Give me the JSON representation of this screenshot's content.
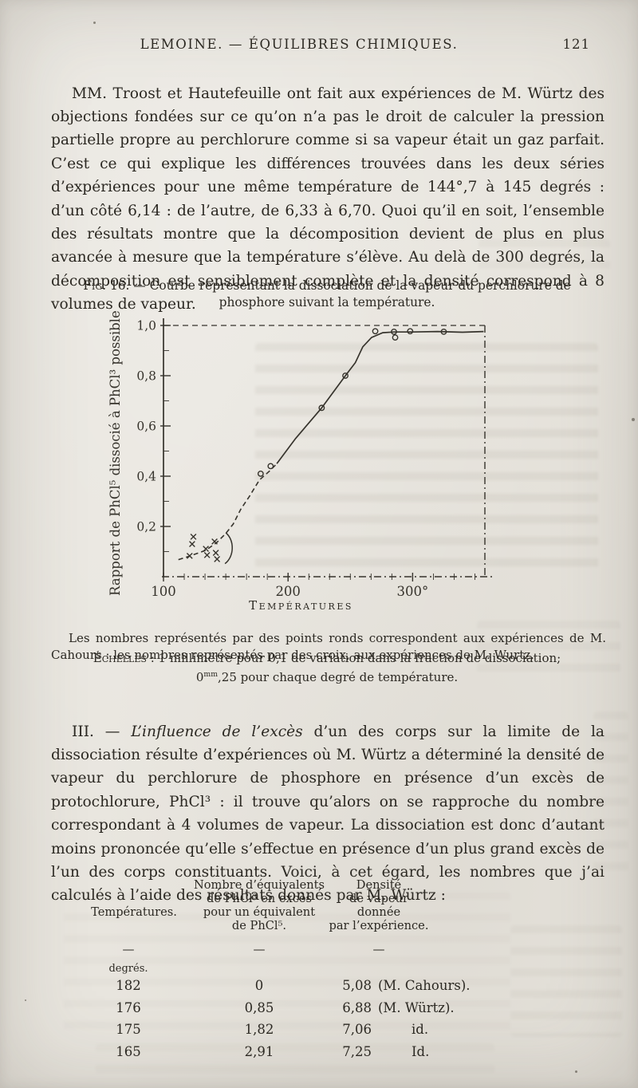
{
  "header": {
    "title": "LEMOINE. — ÉQUILIBRES CHIMIQUES.",
    "page_number": "121"
  },
  "paragraph1": "MM. Troost et Hautefeuille ont fait aux expériences de M. Würtz des objections fondées sur ce qu’on n’a pas le droit de calculer la pression partielle propre au perchlorure comme si sa vapeur était un gaz parfait. C’est ce qui explique les différences trouvées dans les deux séries d’expériences pour une même température de 144°,7 à 145 degrés : d’un côté 6,14 : de l’autre, de 6,33 à 6,70. Quoi qu’il en soit, l’ensemble des résultats montre que la décomposition devient de plus en plus avancée à mesure que la température s’élève. Au delà de 300 degrés, la décomposition est sensiblement complète et la densité correspond à 8 volumes de vapeur.",
  "figure": {
    "caption_label": "Fig. 16.",
    "caption_text": " — Courbe représentant la dissociation de la vapeur du perchlorure de phosphore suivant la température.",
    "xlabel_display": "Températures",
    "legend_note": "Les nombres représentés par des points ronds correspondent aux expériences de M. Cahours : les nombres représentés par des croix, aux expériences de M. Wurtz.",
    "scales_label": "Échelles",
    "scales_line1_rest": " : 1 millimètre pour 0,1 de variation dans la fraction de dissociation;",
    "scales_line2_pre": "0",
    "scales_line2_sup": "mm",
    "scales_line2_post": ",25 pour chaque degré de température."
  },
  "chart_data": {
    "type": "line",
    "title": "Fig. 16. — Courbe représentant la dissociation de la vapeur du perchlorure de phosphore suivant la température.",
    "xlabel": "TEMPÉRATURES",
    "ylabel": "Rapport de PhCl⁵ dissocié à PhCl³ possible.",
    "xlim": [
      100,
      358
    ],
    "ylim": [
      0,
      1.0
    ],
    "xticks": [
      100,
      200,
      300
    ],
    "xtick_labels": [
      "100",
      "200",
      "300°"
    ],
    "x_minor_step": 16.667,
    "yticks": [
      0.2,
      0.4,
      0.6,
      0.8,
      1.0
    ],
    "ytick_labels": [
      "0,2",
      "0,4",
      "0,6",
      "0,8",
      "1,0"
    ],
    "y_minor_step": 0.1,
    "top_reference_line": 1.0,
    "grid": false,
    "legend_position": "caption below figure",
    "series": [
      {
        "name": "Expériences de M. Cahours (points ronds)",
        "marker": "circle",
        "points": [
          [
            178,
            0.41
          ],
          [
            186,
            0.44
          ],
          [
            227,
            0.672
          ],
          [
            246,
            0.8
          ],
          [
            270,
            0.977
          ],
          [
            285,
            0.975
          ],
          [
            286,
            0.952
          ],
          [
            298,
            0.977
          ],
          [
            325,
            0.975
          ]
        ]
      },
      {
        "name": "Expériences de M. Wurtz (croix)",
        "marker": "cross",
        "points": [
          [
            121,
            0.083
          ],
          [
            123,
            0.13
          ],
          [
            124,
            0.159
          ],
          [
            134,
            0.111
          ],
          [
            135,
            0.086
          ],
          [
            141,
            0.14
          ],
          [
            142,
            0.095
          ],
          [
            143,
            0.07
          ]
        ]
      }
    ],
    "curve": {
      "dashed": [
        [
          112,
          0.068
        ],
        [
          121,
          0.082
        ],
        [
          134,
          0.105
        ],
        [
          143,
          0.137
        ],
        [
          150,
          0.172
        ],
        [
          156,
          0.21
        ],
        [
          162,
          0.268
        ],
        [
          169,
          0.32
        ],
        [
          177,
          0.385
        ],
        [
          185,
          0.42
        ],
        [
          191,
          0.45
        ]
      ],
      "solid": [
        [
          191,
          0.45
        ],
        [
          206,
          0.55
        ],
        [
          227,
          0.672
        ],
        [
          246,
          0.8
        ],
        [
          254,
          0.852
        ],
        [
          260,
          0.915
        ],
        [
          267,
          0.952
        ],
        [
          276,
          0.971
        ],
        [
          285,
          0.974
        ],
        [
          300,
          0.974
        ],
        [
          320,
          0.976
        ],
        [
          340,
          0.973
        ],
        [
          357,
          0.976
        ]
      ]
    },
    "annotation_bracket": {
      "x": 150,
      "y_top": 0.175,
      "y_bottom": 0.052
    }
  },
  "section3": {
    "numeral": "III. — ",
    "italic_lead": "L’influence de l’excès",
    "rest": " d’un des corps sur la limite de la dissociation résulte d’expériences où M. Würtz a déterminé la densité de vapeur du perchlorure de phosphore en présence d’un excès de protochlorure, PhCl³ : il trouve qu’alors on se rapproche du nombre correspondant à 4 volumes de vapeur. La dissociation est donc d’autant moins prononcée qu’elle s’effectue en présence d’un plus grand excès de l’un des corps constituants. Voici, à cet égard, les nombres que j’ai calculés à l’aide des résultats donnés par M. Würtz :"
  },
  "table": {
    "col1_header": "Températures.",
    "col2_header": [
      "Nombre d’équivalents",
      "de PhCl³ en excès",
      "pour un équivalent",
      "de PhCl⁵."
    ],
    "col3_header": [
      "Densité",
      "de vapeur",
      "donnée",
      "par l’expérience."
    ],
    "dash": "—",
    "unit_note": "degrés.",
    "rows": [
      {
        "temp": "182",
        "equiv": "0",
        "density": "5,08",
        "source": "(M. Cahours)."
      },
      {
        "temp": "176",
        "equiv": "0,85",
        "density": "6,88",
        "source": "(M. Würtz)."
      },
      {
        "temp": "175",
        "equiv": "1,82",
        "density": "7,06",
        "source": "id."
      },
      {
        "temp": "165",
        "equiv": "2,91",
        "density": "7,25",
        "source": "Id."
      }
    ]
  },
  "colors": {
    "paper": "#e8e5de",
    "ink": "#2b2822",
    "chart_ink": "#36332c"
  }
}
